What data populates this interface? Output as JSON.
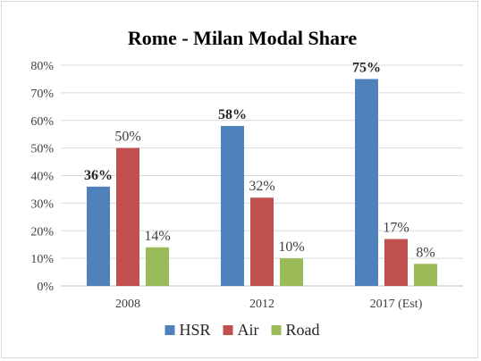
{
  "chart_data": {
    "type": "bar",
    "title": "Rome - Milan  Modal Share",
    "categories": [
      "2008",
      "2012",
      "2017 (Est)"
    ],
    "series": [
      {
        "name": "HSR",
        "values": [
          36,
          58,
          75
        ],
        "labels": [
          "36%",
          "58%",
          "75%"
        ],
        "color": "#4f81bd",
        "bold_labels": true
      },
      {
        "name": "Air",
        "values": [
          50,
          32,
          17
        ],
        "labels": [
          "50%",
          "32%",
          "17%"
        ],
        "color": "#c0504d",
        "bold_labels": false
      },
      {
        "name": "Road",
        "values": [
          14,
          10,
          8
        ],
        "labels": [
          "14%",
          "10%",
          "8%"
        ],
        "color": "#9bbb59",
        "bold_labels": false
      }
    ],
    "yticks": [
      "0%",
      "10%",
      "20%",
      "30%",
      "40%",
      "50%",
      "60%",
      "70%",
      "80%"
    ],
    "ylim": [
      0,
      80
    ],
    "xlabel": "",
    "ylabel": "",
    "grid": true,
    "legend": "bottom"
  }
}
